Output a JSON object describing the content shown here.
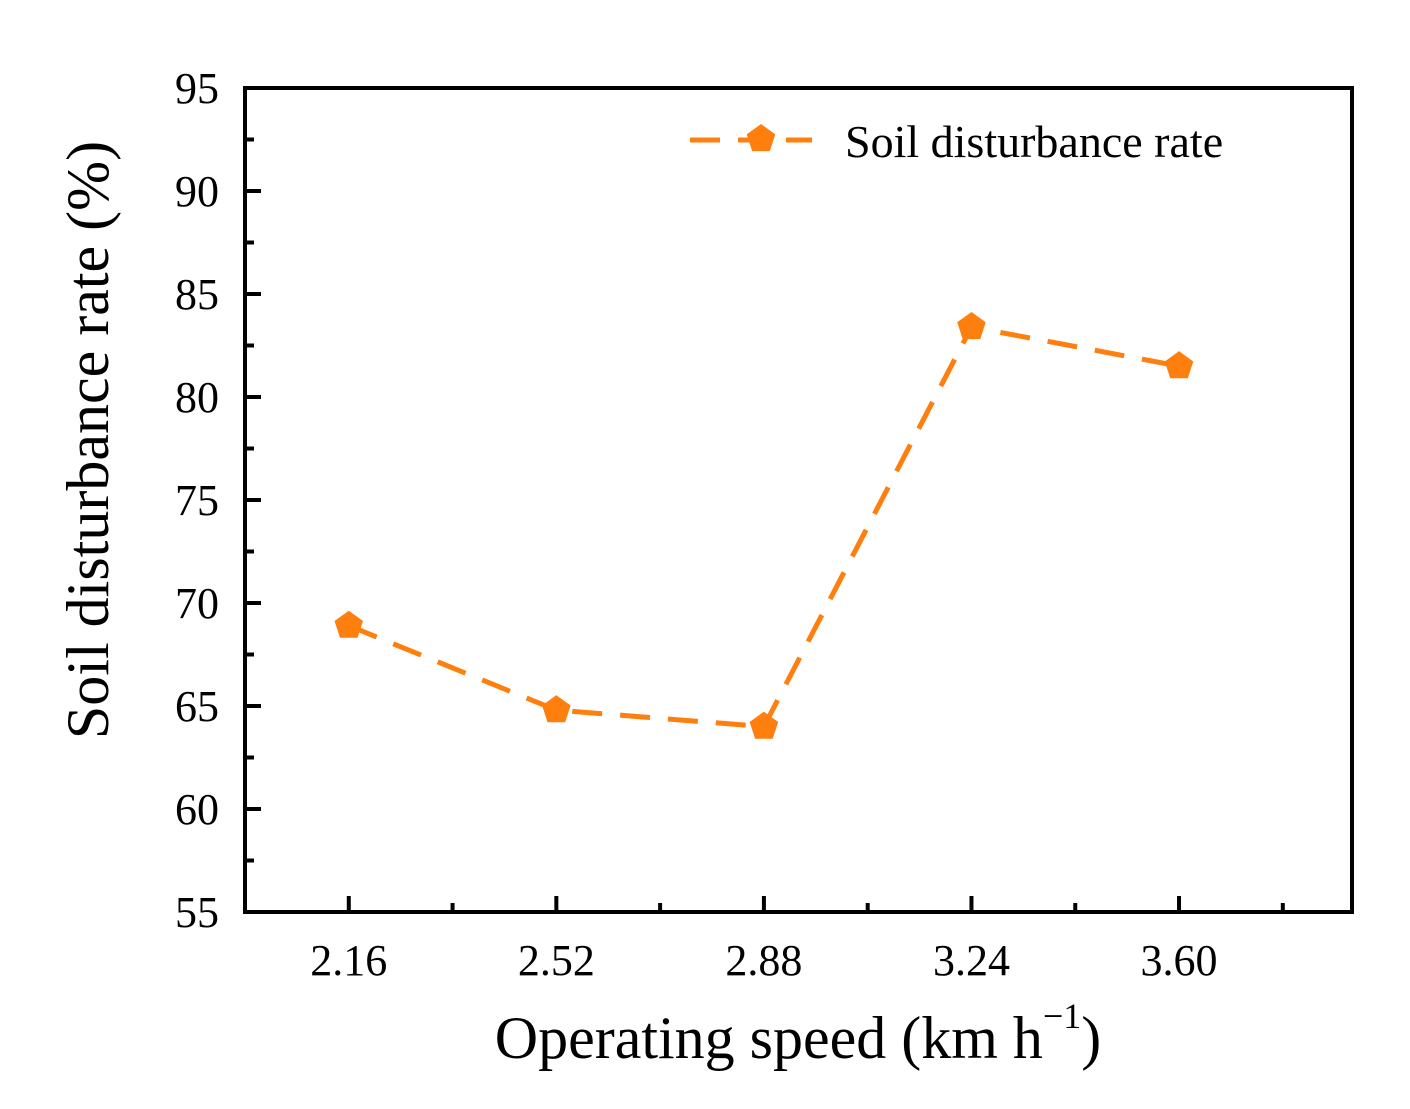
{
  "chart_data": {
    "type": "line",
    "x": [
      2.16,
      2.52,
      2.88,
      3.24,
      3.6
    ],
    "x_tick_labels": [
      "2.16",
      "2.52",
      "2.88",
      "3.24",
      "3.60"
    ],
    "xlim": [
      1.98,
      3.9
    ],
    "ylim": [
      55,
      95
    ],
    "y_ticks": [
      55,
      60,
      65,
      70,
      75,
      80,
      85,
      90,
      95
    ],
    "y_tick_labels": [
      "55",
      "60",
      "65",
      "70",
      "75",
      "80",
      "85",
      "90",
      "95"
    ],
    "xlabel": "Operating speed (km h",
    "xlabel_superscript": "−1",
    "xlabel_close": ")",
    "ylabel": "Soil disturbance rate (%)",
    "series": [
      {
        "name": "Soil disturbance rate",
        "values": [
          68.9,
          64.8,
          64.0,
          83.4,
          81.5
        ],
        "color": "#ff7f0e",
        "marker": "pentagon",
        "line_style": "dashed"
      }
    ],
    "legend_position": "top-right",
    "grid": false
  }
}
